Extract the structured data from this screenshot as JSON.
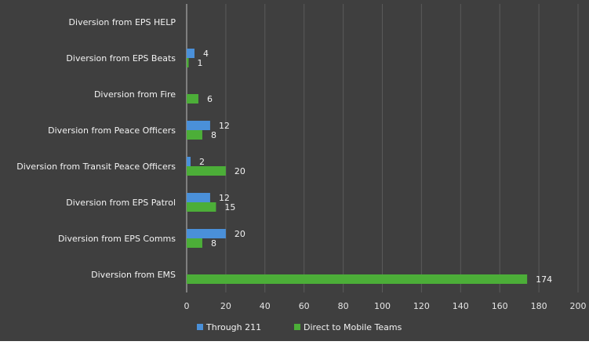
{
  "chart_data": {
    "type": "bar",
    "orientation": "horizontal",
    "title": "",
    "xlabel": "",
    "ylabel": "",
    "categories": [
      "Diversion from EPS HELP",
      "Diversion from EPS Beats",
      "Diversion from Fire",
      "Diversion from Peace Officers",
      "Diversion from Transit Peace Officers",
      "Diversion from EPS Patrol",
      "Diversion from EPS Comms",
      "Diversion from EMS"
    ],
    "series": [
      {
        "name": "Through 211",
        "color": "#4a90d9",
        "values": [
          null,
          4,
          null,
          12,
          2,
          12,
          20,
          null
        ]
      },
      {
        "name": "Direct to Mobile Teams",
        "color": "#4cae38",
        "values": [
          null,
          1,
          6,
          8,
          20,
          15,
          8,
          174
        ]
      }
    ],
    "xlim": [
      0,
      200
    ],
    "xticks": [
      0,
      20,
      40,
      60,
      80,
      100,
      120,
      140,
      160,
      180,
      200
    ],
    "grid": true,
    "legend_position": "bottom",
    "colors": {
      "background": "#3f3f3f",
      "gridline": "#5a5a5a",
      "axis": "#bfbfbf",
      "text": "#f2f2f2"
    }
  }
}
